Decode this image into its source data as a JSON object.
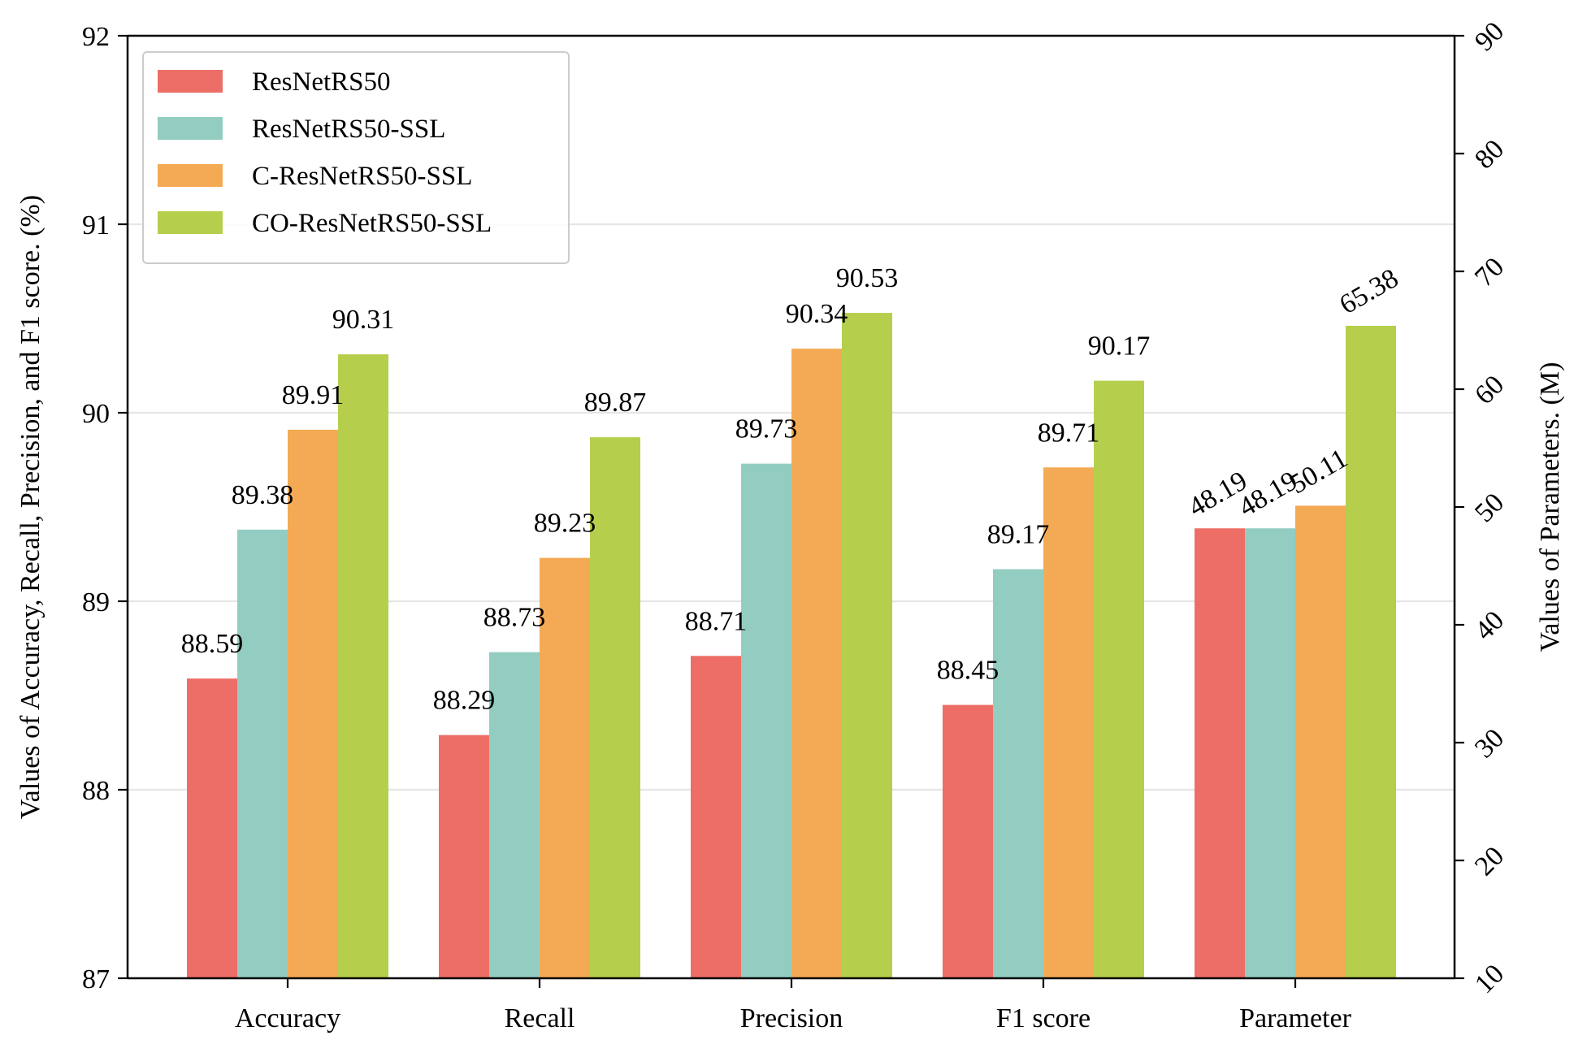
{
  "chart_data": {
    "type": "bar",
    "categories": [
      "Accuracy",
      "Recall",
      "Precision",
      "F1 score",
      "Parameter"
    ],
    "series": [
      {
        "name": "ResNetRS50",
        "color": "#ec6e66",
        "values": [
          88.59,
          88.29,
          88.71,
          88.45,
          48.19
        ]
      },
      {
        "name": "ResNetRS50-SSL",
        "color": "#93cdc1",
        "values": [
          89.38,
          88.73,
          89.73,
          89.17,
          48.19
        ]
      },
      {
        "name": "C-ResNetRS50-SSL",
        "color": "#f4aa54",
        "values": [
          89.91,
          89.23,
          90.34,
          89.71,
          50.11
        ]
      },
      {
        "name": "CO-ResNetRS50-SSL",
        "color": "#b5cf4d",
        "values": [
          90.31,
          89.87,
          90.53,
          90.17,
          65.38
        ]
      }
    ],
    "secondary_axis_categories": [
      "Parameter"
    ],
    "ylabel": "Values of Accuracy, Recall, Precision, and F1 score. (%)",
    "y2label": "Values of Parameters. (M)",
    "ylim": [
      87,
      92
    ],
    "yticks": [
      "87",
      "88",
      "89",
      "90",
      "91",
      "92"
    ],
    "y2lim": [
      10,
      90
    ],
    "y2ticks": [
      "10",
      "20",
      "30",
      "40",
      "50",
      "60",
      "70",
      "80",
      "90"
    ],
    "grid": "horizontal",
    "legend_position": "top-left"
  }
}
